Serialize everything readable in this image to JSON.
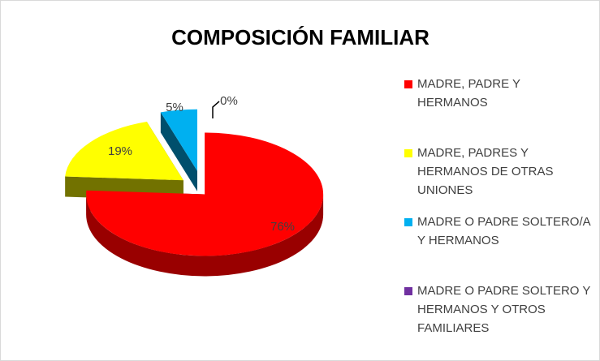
{
  "chart_data": {
    "type": "pie3d",
    "title": "COMPOSICIÓN FAMILIAR",
    "categories": [
      "MADRE, PADRE Y HERMANOS",
      "MADRE, PADRES Y HERMANOS DE OTRAS UNIONES",
      "MADRE O PADRE SOLTERO/A Y HERMANOS",
      "MADRE O PADRE SOLTERO Y HERMANOS Y OTROS FAMILIARES"
    ],
    "values": [
      76,
      19,
      5,
      0
    ],
    "value_labels": [
      "76%",
      "19%",
      "5%",
      "0%"
    ],
    "colors": [
      "#ff0000",
      "#ffff00",
      "#00b0f0",
      "#7030a0"
    ],
    "legend": "right"
  }
}
